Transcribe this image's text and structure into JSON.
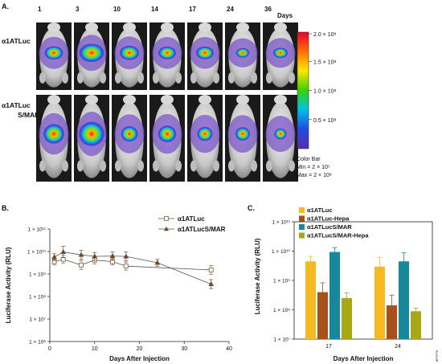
{
  "panels": {
    "A": {
      "label": "A.",
      "day_labels": [
        "1",
        "3",
        "10",
        "14",
        "17",
        "24",
        "36"
      ],
      "days_word": "Days",
      "row_labels": [
        [
          "α1ATLuc"
        ],
        [
          "α1ATLuc",
          "S/MAR"
        ]
      ],
      "colorbar": {
        "ticks": [
          "2.0 × 10⁸",
          "1.5 × 10⁸",
          "1.0 × 10⁸",
          "0.5 × 10⁸"
        ],
        "tick_values": [
          2.0,
          1.5,
          1.0,
          0.5
        ],
        "title": "Color Bar",
        "min_text": "Min = 2 × 10⁵",
        "max_text": "Max = 2 × 10⁸"
      },
      "signal": {
        "row1": [
          0.55,
          0.95,
          0.62,
          0.5,
          0.5,
          0.22,
          0.3
        ],
        "row2": [
          0.7,
          1.0,
          0.45,
          0.52,
          0.35,
          0.3,
          0.15
        ]
      }
    },
    "B": {
      "label": "B."
    },
    "C": {
      "label": "C."
    }
  },
  "chart_data": [
    {
      "type": "line",
      "xlabel": "Days After Injection",
      "ylabel": "Luciferase Activity (RLU)",
      "xlim": [
        0,
        40
      ],
      "x_ticks": [
        "0",
        "10",
        "20",
        "30",
        "40"
      ],
      "y_scale": "log",
      "ylim_exp": [
        6,
        11
      ],
      "y_ticks": [
        "1 × 10⁶",
        "1 × 10⁷",
        "1 × 10⁸",
        "1 × 10⁹",
        "1 × 10¹⁰",
        "1 × 10¹¹"
      ],
      "legend_position": "top-right",
      "series": [
        {
          "name": "α1ATLuc",
          "marker": "square-open",
          "color": "#8a6d50",
          "x": [
            1,
            3,
            7,
            10,
            14,
            17,
            36
          ],
          "y_exp": [
            9.55,
            9.65,
            9.4,
            9.62,
            9.55,
            9.35,
            9.18
          ],
          "err_exp": [
            0.15,
            0.18,
            0.2,
            0.18,
            0.15,
            0.18,
            0.2
          ]
        },
        {
          "name": "α1ATLucS/MAR",
          "marker": "triangle-filled",
          "color": "#6b4a2c",
          "x": [
            1,
            3,
            7,
            10,
            14,
            17,
            24,
            36
          ],
          "y_exp": [
            9.75,
            9.98,
            9.85,
            9.78,
            9.8,
            9.78,
            9.5,
            8.55
          ],
          "err_exp": [
            0.15,
            0.25,
            0.2,
            0.18,
            0.18,
            0.2,
            0.15,
            0.2
          ]
        }
      ]
    },
    {
      "type": "bar",
      "xlabel": "Days After Injection",
      "ylabel": "Luciferase Activity (RLU)",
      "categories": [
        "17",
        "24"
      ],
      "y_scale": "log",
      "ylim_exp": [
        7,
        11
      ],
      "y_ticks": [
        "1 × 10⁷",
        "1 × 10⁸",
        "1 × 10⁹",
        "1 × 10¹⁰",
        "1 × 10¹¹"
      ],
      "legend_position": "top",
      "series": [
        {
          "name": "α1ATLuc",
          "color": "#f5b921",
          "values_exp": [
            9.65,
            9.47
          ],
          "err_exp": [
            0.17,
            0.32
          ]
        },
        {
          "name": "α1ATLuc-Hepa",
          "color": "#a8501c",
          "values_exp": [
            8.6,
            8.15
          ],
          "err_exp": [
            0.32,
            0.35
          ]
        },
        {
          "name": "α1ATLucS/MAR",
          "color": "#16889a",
          "values_exp": [
            9.97,
            9.65
          ],
          "err_exp": [
            0.15,
            0.3
          ]
        },
        {
          "name": "α1ATLucS/MAR-Hepa",
          "color": "#a8a815",
          "values_exp": [
            8.4,
            7.95
          ],
          "err_exp": [
            0.18,
            0.1
          ]
        }
      ]
    }
  ],
  "footnote": "8P7P76"
}
